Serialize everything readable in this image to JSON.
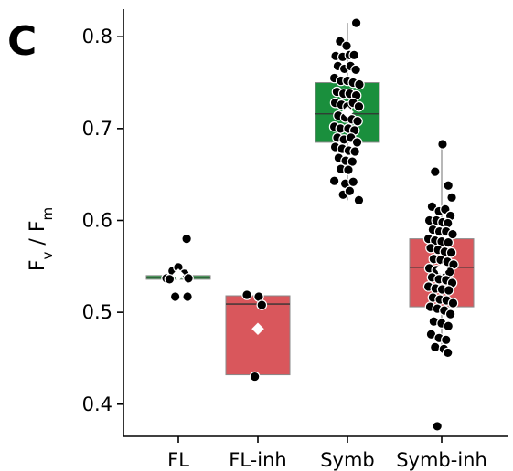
{
  "panel_label": "C",
  "chart_data": {
    "type": "box",
    "ylabel": "Fv / Fm",
    "ylabel_parts": {
      "F1": "F",
      "sub1": "v",
      "sep": " / ",
      "F2": "F",
      "sub2": "m"
    },
    "ylim": [
      0.365,
      0.83
    ],
    "yticks": [
      0.4,
      0.5,
      0.6,
      0.7,
      0.8
    ],
    "ytick_labels": [
      "0.4",
      "0.5",
      "0.6",
      "0.7",
      "0.8"
    ],
    "categories": [
      "FL",
      "FL-inh",
      "Symb",
      "Symb-inh"
    ],
    "colors": {
      "FL": "#2e9a45",
      "FL-inh": "#d9575c",
      "Symb": "#1a8f3d",
      "Symb-inh": "#d9575c"
    },
    "groups": [
      {
        "name": "FL",
        "q1": 0.536,
        "median": 0.538,
        "q3": 0.54,
        "whisker_low": 0.536,
        "whisker_high": 0.54,
        "mean": 0.541,
        "points": [
          {
            "x": -0.27,
            "y": 0.537
          },
          {
            "x": -0.13,
            "y": 0.545
          },
          {
            "x": 0.0,
            "y": 0.549
          },
          {
            "x": 0.14,
            "y": 0.542
          },
          {
            "x": 0.23,
            "y": 0.537
          },
          {
            "x": -0.2,
            "y": 0.536
          },
          {
            "x": -0.07,
            "y": 0.517
          },
          {
            "x": 0.21,
            "y": 0.517
          },
          {
            "x": 0.19,
            "y": 0.58
          }
        ]
      },
      {
        "name": "FL-inh",
        "q1": 0.432,
        "median": 0.509,
        "q3": 0.518,
        "whisker_low": 0.432,
        "whisker_high": 0.518,
        "mean": 0.482,
        "points": [
          {
            "x": -0.25,
            "y": 0.519
          },
          {
            "x": 0.02,
            "y": 0.517
          },
          {
            "x": 0.09,
            "y": 0.508
          },
          {
            "x": -0.07,
            "y": 0.43
          }
        ]
      },
      {
        "name": "Symb",
        "q1": 0.685,
        "median": 0.716,
        "q3": 0.75,
        "whisker_low": 0.622,
        "whisker_high": 0.815,
        "mean": 0.718,
        "points": [
          {
            "x": 0.2,
            "y": 0.815
          },
          {
            "x": -0.17,
            "y": 0.795
          },
          {
            "x": -0.02,
            "y": 0.79
          },
          {
            "x": -0.27,
            "y": 0.779
          },
          {
            "x": -0.11,
            "y": 0.778
          },
          {
            "x": 0.05,
            "y": 0.78
          },
          {
            "x": 0.15,
            "y": 0.78
          },
          {
            "x": -0.22,
            "y": 0.768
          },
          {
            "x": -0.07,
            "y": 0.765
          },
          {
            "x": 0.07,
            "y": 0.768
          },
          {
            "x": 0.19,
            "y": 0.764
          },
          {
            "x": -0.3,
            "y": 0.755
          },
          {
            "x": -0.15,
            "y": 0.752
          },
          {
            "x": 0.0,
            "y": 0.752
          },
          {
            "x": 0.13,
            "y": 0.75
          },
          {
            "x": 0.27,
            "y": 0.748
          },
          {
            "x": -0.24,
            "y": 0.74
          },
          {
            "x": -0.09,
            "y": 0.738
          },
          {
            "x": 0.05,
            "y": 0.738
          },
          {
            "x": 0.2,
            "y": 0.736
          },
          {
            "x": -0.28,
            "y": 0.728
          },
          {
            "x": -0.14,
            "y": 0.726
          },
          {
            "x": 0.0,
            "y": 0.724
          },
          {
            "x": 0.13,
            "y": 0.728
          },
          {
            "x": 0.26,
            "y": 0.724
          },
          {
            "x": -0.21,
            "y": 0.714
          },
          {
            "x": -0.05,
            "y": 0.712
          },
          {
            "x": 0.1,
            "y": 0.71
          },
          {
            "x": 0.23,
            "y": 0.708
          },
          {
            "x": -0.3,
            "y": 0.702
          },
          {
            "x": -0.16,
            "y": 0.7
          },
          {
            "x": 0.02,
            "y": 0.7
          },
          {
            "x": 0.16,
            "y": 0.698
          },
          {
            "x": -0.23,
            "y": 0.69
          },
          {
            "x": -0.08,
            "y": 0.688
          },
          {
            "x": 0.08,
            "y": 0.69
          },
          {
            "x": 0.22,
            "y": 0.685
          },
          {
            "x": -0.28,
            "y": 0.68
          },
          {
            "x": -0.12,
            "y": 0.678
          },
          {
            "x": 0.03,
            "y": 0.676
          },
          {
            "x": 0.17,
            "y": 0.675
          },
          {
            "x": -0.2,
            "y": 0.668
          },
          {
            "x": -0.04,
            "y": 0.665
          },
          {
            "x": 0.11,
            "y": 0.664
          },
          {
            "x": -0.15,
            "y": 0.656
          },
          {
            "x": 0.02,
            "y": 0.655
          },
          {
            "x": -0.3,
            "y": 0.643
          },
          {
            "x": -0.05,
            "y": 0.64
          },
          {
            "x": 0.13,
            "y": 0.642
          },
          {
            "x": 0.26,
            "y": 0.622
          },
          {
            "x": -0.1,
            "y": 0.628
          },
          {
            "x": 0.05,
            "y": 0.632
          }
        ]
      },
      {
        "name": "Symb-inh",
        "q1": 0.506,
        "median": 0.549,
        "q3": 0.58,
        "whisker_low": 0.455,
        "whisker_high": 0.688,
        "mean": 0.547,
        "points": [
          {
            "x": 0.02,
            "y": 0.683
          },
          {
            "x": -0.15,
            "y": 0.653
          },
          {
            "x": 0.15,
            "y": 0.638
          },
          {
            "x": 0.23,
            "y": 0.625
          },
          {
            "x": -0.22,
            "y": 0.615
          },
          {
            "x": -0.06,
            "y": 0.61
          },
          {
            "x": 0.08,
            "y": 0.612
          },
          {
            "x": 0.2,
            "y": 0.605
          },
          {
            "x": -0.28,
            "y": 0.6
          },
          {
            "x": -0.12,
            "y": 0.6
          },
          {
            "x": 0.02,
            "y": 0.598
          },
          {
            "x": 0.14,
            "y": 0.597
          },
          {
            "x": -0.2,
            "y": 0.59
          },
          {
            "x": -0.05,
            "y": 0.588
          },
          {
            "x": 0.1,
            "y": 0.588
          },
          {
            "x": 0.25,
            "y": 0.585
          },
          {
            "x": -0.3,
            "y": 0.58
          },
          {
            "x": -0.15,
            "y": 0.578
          },
          {
            "x": 0.0,
            "y": 0.577
          },
          {
            "x": 0.15,
            "y": 0.576
          },
          {
            "x": -0.25,
            "y": 0.57
          },
          {
            "x": -0.08,
            "y": 0.568
          },
          {
            "x": 0.07,
            "y": 0.566
          },
          {
            "x": 0.22,
            "y": 0.565
          },
          {
            "x": -0.18,
            "y": 0.558
          },
          {
            "x": -0.02,
            "y": 0.557
          },
          {
            "x": 0.13,
            "y": 0.555
          },
          {
            "x": 0.27,
            "y": 0.552
          },
          {
            "x": -0.28,
            "y": 0.548
          },
          {
            "x": -0.12,
            "y": 0.546
          },
          {
            "x": 0.03,
            "y": 0.545
          },
          {
            "x": 0.18,
            "y": 0.544
          },
          {
            "x": -0.22,
            "y": 0.538
          },
          {
            "x": -0.06,
            "y": 0.536
          },
          {
            "x": 0.1,
            "y": 0.535
          },
          {
            "x": 0.24,
            "y": 0.532
          },
          {
            "x": -0.3,
            "y": 0.528
          },
          {
            "x": -0.14,
            "y": 0.526
          },
          {
            "x": 0.01,
            "y": 0.525
          },
          {
            "x": 0.16,
            "y": 0.524
          },
          {
            "x": -0.2,
            "y": 0.516
          },
          {
            "x": -0.04,
            "y": 0.514
          },
          {
            "x": 0.11,
            "y": 0.513
          },
          {
            "x": 0.26,
            "y": 0.51
          },
          {
            "x": -0.26,
            "y": 0.506
          },
          {
            "x": -0.1,
            "y": 0.504
          },
          {
            "x": 0.06,
            "y": 0.502
          },
          {
            "x": 0.2,
            "y": 0.498
          },
          {
            "x": -0.18,
            "y": 0.49
          },
          {
            "x": 0.0,
            "y": 0.488
          },
          {
            "x": 0.15,
            "y": 0.485
          },
          {
            "x": -0.24,
            "y": 0.476
          },
          {
            "x": -0.06,
            "y": 0.472
          },
          {
            "x": 0.1,
            "y": 0.47
          },
          {
            "x": -0.15,
            "y": 0.462
          },
          {
            "x": 0.05,
            "y": 0.46
          },
          {
            "x": 0.14,
            "y": 0.456
          },
          {
            "x": -0.1,
            "y": 0.376
          }
        ]
      }
    ]
  }
}
